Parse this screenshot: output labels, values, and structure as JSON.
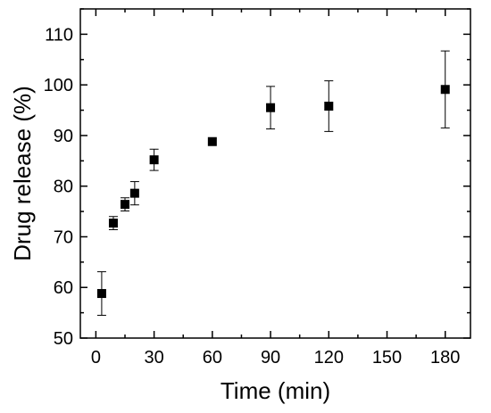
{
  "chart_data": {
    "type": "scatter",
    "title": "",
    "xlabel": "Time (min)",
    "ylabel": "Drug release (%)",
    "xlim": [
      -8,
      193
    ],
    "ylim": [
      50,
      115
    ],
    "x_ticks": [
      0,
      30,
      60,
      90,
      120,
      150,
      180
    ],
    "y_ticks": [
      50,
      60,
      70,
      80,
      90,
      100,
      110
    ],
    "grid": false,
    "marker": "square",
    "marker_color": "#000000",
    "series": [
      {
        "x": [
          3,
          9,
          15,
          20,
          30,
          60,
          90,
          120,
          180
        ],
        "y": [
          58.8,
          72.7,
          76.4,
          78.6,
          85.2,
          88.8,
          95.5,
          95.8,
          99.1
        ],
        "error": [
          4.3,
          1.3,
          1.3,
          2.3,
          2.1,
          0,
          4.2,
          5.0,
          7.6
        ]
      }
    ]
  }
}
